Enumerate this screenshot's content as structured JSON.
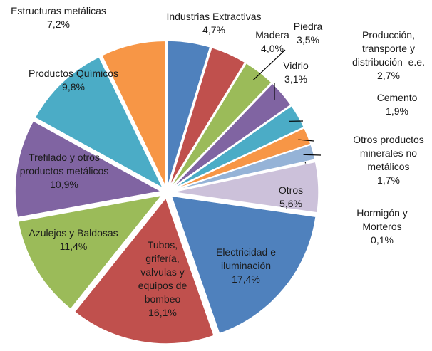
{
  "chart_data": {
    "type": "pie",
    "exploded": true,
    "categories": [
      "Industrias Extractivas",
      "Madera",
      "Piedra",
      "Vidrio",
      "Producción,\ntransporte y\ndistribución  e.e.",
      "Cemento",
      "Otros productos\nminerales no\nmetálicos",
      "Hormigón y\nMorteros",
      "Otros",
      "Electricidad e\niluminación",
      "Tubos,\ngrifería,\nvalvulas y\nequipos de\nbombeo",
      "Azulejos y Baldosas",
      "Trefilado y otros\nproductos metálicos",
      "Productos Químicos",
      "Estructuras metálicas"
    ],
    "values": [
      4.7,
      4.0,
      3.5,
      3.1,
      2.7,
      1.9,
      1.7,
      0.1,
      5.6,
      17.4,
      16.1,
      11.4,
      10.9,
      9.8,
      7.2
    ],
    "value_labels": [
      "4,7%",
      "4,0%",
      "3,5%",
      "3,1%",
      "2,7%",
      "1,9%",
      "1,7%",
      "0,1%",
      "5,6%",
      "17,4%",
      "16,1%",
      "11,4%",
      "10,9%",
      "9,8%",
      "7,2%"
    ],
    "colors": [
      "#4f81bd",
      "#c0504d",
      "#9bbb59",
      "#8064a2",
      "#4bacc6",
      "#f79646",
      "#95b3d7",
      "#d99694",
      "#ccc1da",
      "#4f81bd",
      "#c0504d",
      "#9bbb59",
      "#8064a2",
      "#4bacc6",
      "#f79646"
    ]
  }
}
